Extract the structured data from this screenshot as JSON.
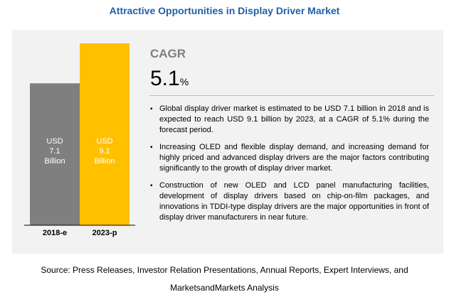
{
  "title": "Attractive Opportunities in Display Driver Market",
  "cagr": {
    "label": "CAGR",
    "value": "5.1",
    "unit": "%"
  },
  "bullets": [
    "Global display driver market is estimated to be USD 7.1 billion in 2018 and is expected to reach USD 9.1 billion by 2023, at a CAGR of 5.1% during the forecast period.",
    "Increasing OLED and flexible display demand, and increasing demand for highly priced and advanced display drivers are the major factors contributing significantly to the growth of display driver market.",
    "Construction of new OLED and LCD panel manufacturing facilities, development of display drivers based on chip-on-film packages, and innovations in TDDI-type display drivers are the major opportunities in front of display driver manufacturers in near future."
  ],
  "source": {
    "line1": "Source: Press Releases, Investor Relation Presentations, Annual Reports, Expert Interviews, and",
    "line2": "MarketsandMarkets Analysis"
  },
  "colors": {
    "title": "#1f5fa8",
    "bar_2018": "#7f7f7f",
    "bar_2023": "#ffc000",
    "panel": "#f2f2f2"
  },
  "chart_data": {
    "type": "bar",
    "categories": [
      "2018-e",
      "2023-p"
    ],
    "values": [
      7.1,
      9.1
    ],
    "bar_labels": [
      "USD\n7.1\nBillion",
      "USD\n9.1\nBillion"
    ],
    "title": "",
    "xlabel": "",
    "ylabel": "",
    "grid": false,
    "legend": "none"
  }
}
